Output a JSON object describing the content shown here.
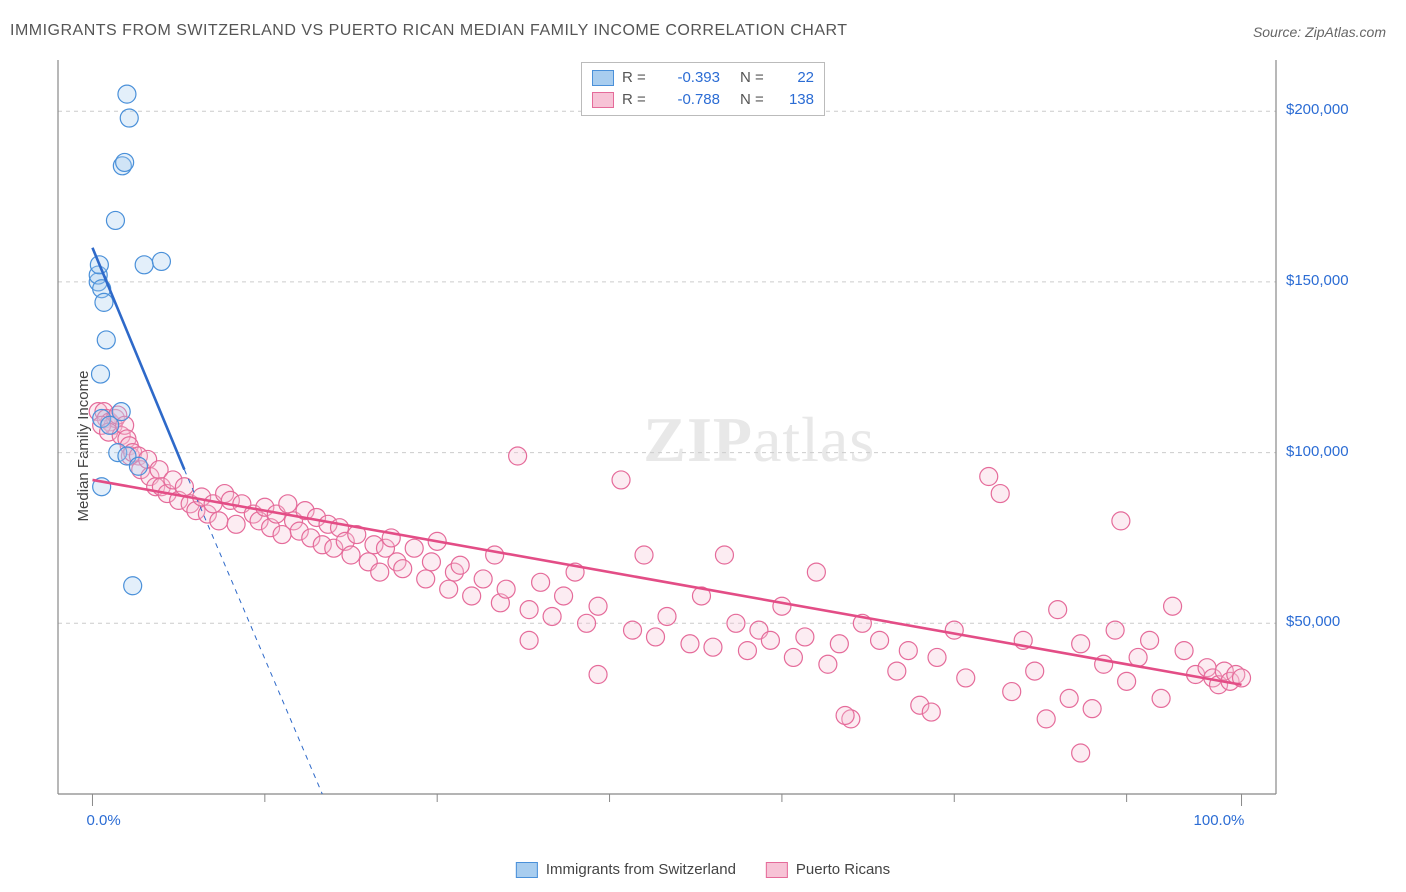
{
  "title": "IMMIGRANTS FROM SWITZERLAND VS PUERTO RICAN MEDIAN FAMILY INCOME CORRELATION CHART",
  "source": "Source: ZipAtlas.com",
  "watermark": {
    "pre": "ZIP",
    "post": "atlas"
  },
  "chart": {
    "type": "scatter",
    "background_color": "#ffffff",
    "grid_color": "#cccccc",
    "axis_color": "#888888",
    "tick_color": "#888888",
    "label_color": "#2b6cd4",
    "tick_label_fontsize": 15,
    "title_fontsize": 16,
    "title_color": "#555555",
    "ylabel": "Median Family Income",
    "ylabel_fontsize": 15,
    "xlim": [
      -3,
      103
    ],
    "ylim": [
      0,
      215000
    ],
    "x_ticks_major": [
      0,
      100
    ],
    "x_ticks_minor": [
      15,
      30,
      45,
      60,
      75,
      90
    ],
    "x_tick_labels": {
      "0": "0.0%",
      "100": "100.0%"
    },
    "y_gridlines": [
      50000,
      100000,
      150000,
      200000
    ],
    "y_tick_labels": {
      "50000": "$50,000",
      "100000": "$100,000",
      "150000": "$150,000",
      "200000": "$200,000"
    },
    "marker_radius": 9,
    "marker_stroke_width": 1.2,
    "marker_fill_opacity": 0.32,
    "trend_line_width": 2.6,
    "series": [
      {
        "key": "swiss",
        "name": "Immigrants from Switzerland",
        "color_stroke": "#4a90d9",
        "color_fill": "#a8cdef",
        "trend_color": "#2e69c9",
        "R": "-0.393",
        "N": "22",
        "trend": {
          "x1": 0,
          "y1": 160000,
          "x2": 8,
          "y2": 95000
        },
        "trend_extrapolate": {
          "x2": 20,
          "y2": 0
        },
        "points": [
          [
            0.5,
            150000
          ],
          [
            0.5,
            152000
          ],
          [
            0.6,
            155000
          ],
          [
            0.8,
            148000
          ],
          [
            1.0,
            144000
          ],
          [
            1.2,
            133000
          ],
          [
            2.0,
            168000
          ],
          [
            3.0,
            205000
          ],
          [
            3.2,
            198000
          ],
          [
            2.6,
            184000
          ],
          [
            2.8,
            185000
          ],
          [
            2.5,
            112000
          ],
          [
            0.7,
            123000
          ],
          [
            0.8,
            110000
          ],
          [
            1.5,
            108000
          ],
          [
            2.2,
            100000
          ],
          [
            3.0,
            99000
          ],
          [
            4.0,
            96000
          ],
          [
            4.5,
            155000
          ],
          [
            6.0,
            156000
          ],
          [
            0.8,
            90000
          ],
          [
            3.5,
            61000
          ]
        ]
      },
      {
        "key": "pr",
        "name": "Puerto Ricans",
        "color_stroke": "#e56b9a",
        "color_fill": "#f7c3d6",
        "trend_color": "#e34d86",
        "R": "-0.788",
        "N": "138",
        "trend": {
          "x1": 0,
          "y1": 92000,
          "x2": 100,
          "y2": 32000
        },
        "points": [
          [
            0.5,
            112000
          ],
          [
            1,
            112000
          ],
          [
            1.2,
            110000
          ],
          [
            1.5,
            109000
          ],
          [
            1.8,
            108000
          ],
          [
            2,
            110000
          ],
          [
            0.8,
            108000
          ],
          [
            1.4,
            106000
          ],
          [
            2.2,
            111000
          ],
          [
            2.5,
            105000
          ],
          [
            2.8,
            108000
          ],
          [
            3,
            104000
          ],
          [
            3.2,
            102000
          ],
          [
            3.3,
            99000
          ],
          [
            3.5,
            100000
          ],
          [
            4,
            99000
          ],
          [
            4.2,
            95000
          ],
          [
            4.8,
            98000
          ],
          [
            5,
            93000
          ],
          [
            5.5,
            90000
          ],
          [
            5.8,
            95000
          ],
          [
            6,
            90000
          ],
          [
            6.5,
            88000
          ],
          [
            7,
            92000
          ],
          [
            7.5,
            86000
          ],
          [
            8,
            90000
          ],
          [
            8.5,
            85000
          ],
          [
            9,
            83000
          ],
          [
            9.5,
            87000
          ],
          [
            10,
            82000
          ],
          [
            10.5,
            85000
          ],
          [
            11,
            80000
          ],
          [
            11.5,
            88000
          ],
          [
            12,
            86000
          ],
          [
            12.5,
            79000
          ],
          [
            13,
            85000
          ],
          [
            14,
            82000
          ],
          [
            14.5,
            80000
          ],
          [
            15,
            84000
          ],
          [
            15.5,
            78000
          ],
          [
            16,
            82000
          ],
          [
            16.5,
            76000
          ],
          [
            17,
            85000
          ],
          [
            17.5,
            80000
          ],
          [
            18,
            77000
          ],
          [
            18.5,
            83000
          ],
          [
            19,
            75000
          ],
          [
            19.5,
            81000
          ],
          [
            20,
            73000
          ],
          [
            20.5,
            79000
          ],
          [
            21,
            72000
          ],
          [
            21.5,
            78000
          ],
          [
            22,
            74000
          ],
          [
            22.5,
            70000
          ],
          [
            23,
            76000
          ],
          [
            24,
            68000
          ],
          [
            24.5,
            73000
          ],
          [
            25,
            65000
          ],
          [
            25.5,
            72000
          ],
          [
            26,
            75000
          ],
          [
            26.5,
            68000
          ],
          [
            27,
            66000
          ],
          [
            28,
            72000
          ],
          [
            29,
            63000
          ],
          [
            29.5,
            68000
          ],
          [
            30,
            74000
          ],
          [
            31,
            60000
          ],
          [
            31.5,
            65000
          ],
          [
            32,
            67000
          ],
          [
            33,
            58000
          ],
          [
            34,
            63000
          ],
          [
            35,
            70000
          ],
          [
            35.5,
            56000
          ],
          [
            36,
            60000
          ],
          [
            37,
            99000
          ],
          [
            38,
            54000
          ],
          [
            38,
            45000
          ],
          [
            39,
            62000
          ],
          [
            40,
            52000
          ],
          [
            41,
            58000
          ],
          [
            42,
            65000
          ],
          [
            43,
            50000
          ],
          [
            44,
            55000
          ],
          [
            44,
            35000
          ],
          [
            46,
            92000
          ],
          [
            47,
            48000
          ],
          [
            48,
            70000
          ],
          [
            49,
            46000
          ],
          [
            50,
            52000
          ],
          [
            52,
            44000
          ],
          [
            53,
            58000
          ],
          [
            54,
            43000
          ],
          [
            55,
            70000
          ],
          [
            56,
            50000
          ],
          [
            57,
            42000
          ],
          [
            58,
            48000
          ],
          [
            59,
            45000
          ],
          [
            60,
            55000
          ],
          [
            61,
            40000
          ],
          [
            62,
            46000
          ],
          [
            63,
            65000
          ],
          [
            64,
            38000
          ],
          [
            65,
            44000
          ],
          [
            66,
            22000
          ],
          [
            67,
            50000
          ],
          [
            68.5,
            45000
          ],
          [
            70,
            36000
          ],
          [
            71,
            42000
          ],
          [
            72,
            26000
          ],
          [
            73,
            24000
          ],
          [
            73.5,
            40000
          ],
          [
            75,
            48000
          ],
          [
            76,
            34000
          ],
          [
            78,
            93000
          ],
          [
            79,
            88000
          ],
          [
            80,
            30000
          ],
          [
            81,
            45000
          ],
          [
            82,
            36000
          ],
          [
            83,
            22000
          ],
          [
            84,
            54000
          ],
          [
            85,
            28000
          ],
          [
            86,
            44000
          ],
          [
            87,
            25000
          ],
          [
            88,
            38000
          ],
          [
            89,
            48000
          ],
          [
            89.5,
            80000
          ],
          [
            90,
            33000
          ],
          [
            91,
            40000
          ],
          [
            92,
            45000
          ],
          [
            93,
            28000
          ],
          [
            94,
            55000
          ],
          [
            95,
            42000
          ],
          [
            96,
            35000
          ],
          [
            97,
            37000
          ],
          [
            97.5,
            34000
          ],
          [
            98,
            32000
          ],
          [
            98.5,
            36000
          ],
          [
            99,
            33000
          ],
          [
            99.5,
            35000
          ],
          [
            100,
            34000
          ],
          [
            86,
            12000
          ],
          [
            65.5,
            23000
          ]
        ]
      }
    ]
  },
  "legend_top": {
    "R_label": "R =",
    "N_label": "N ="
  },
  "legend_bottom": {
    "items": [
      "Immigrants from Switzerland",
      "Puerto Ricans"
    ]
  }
}
